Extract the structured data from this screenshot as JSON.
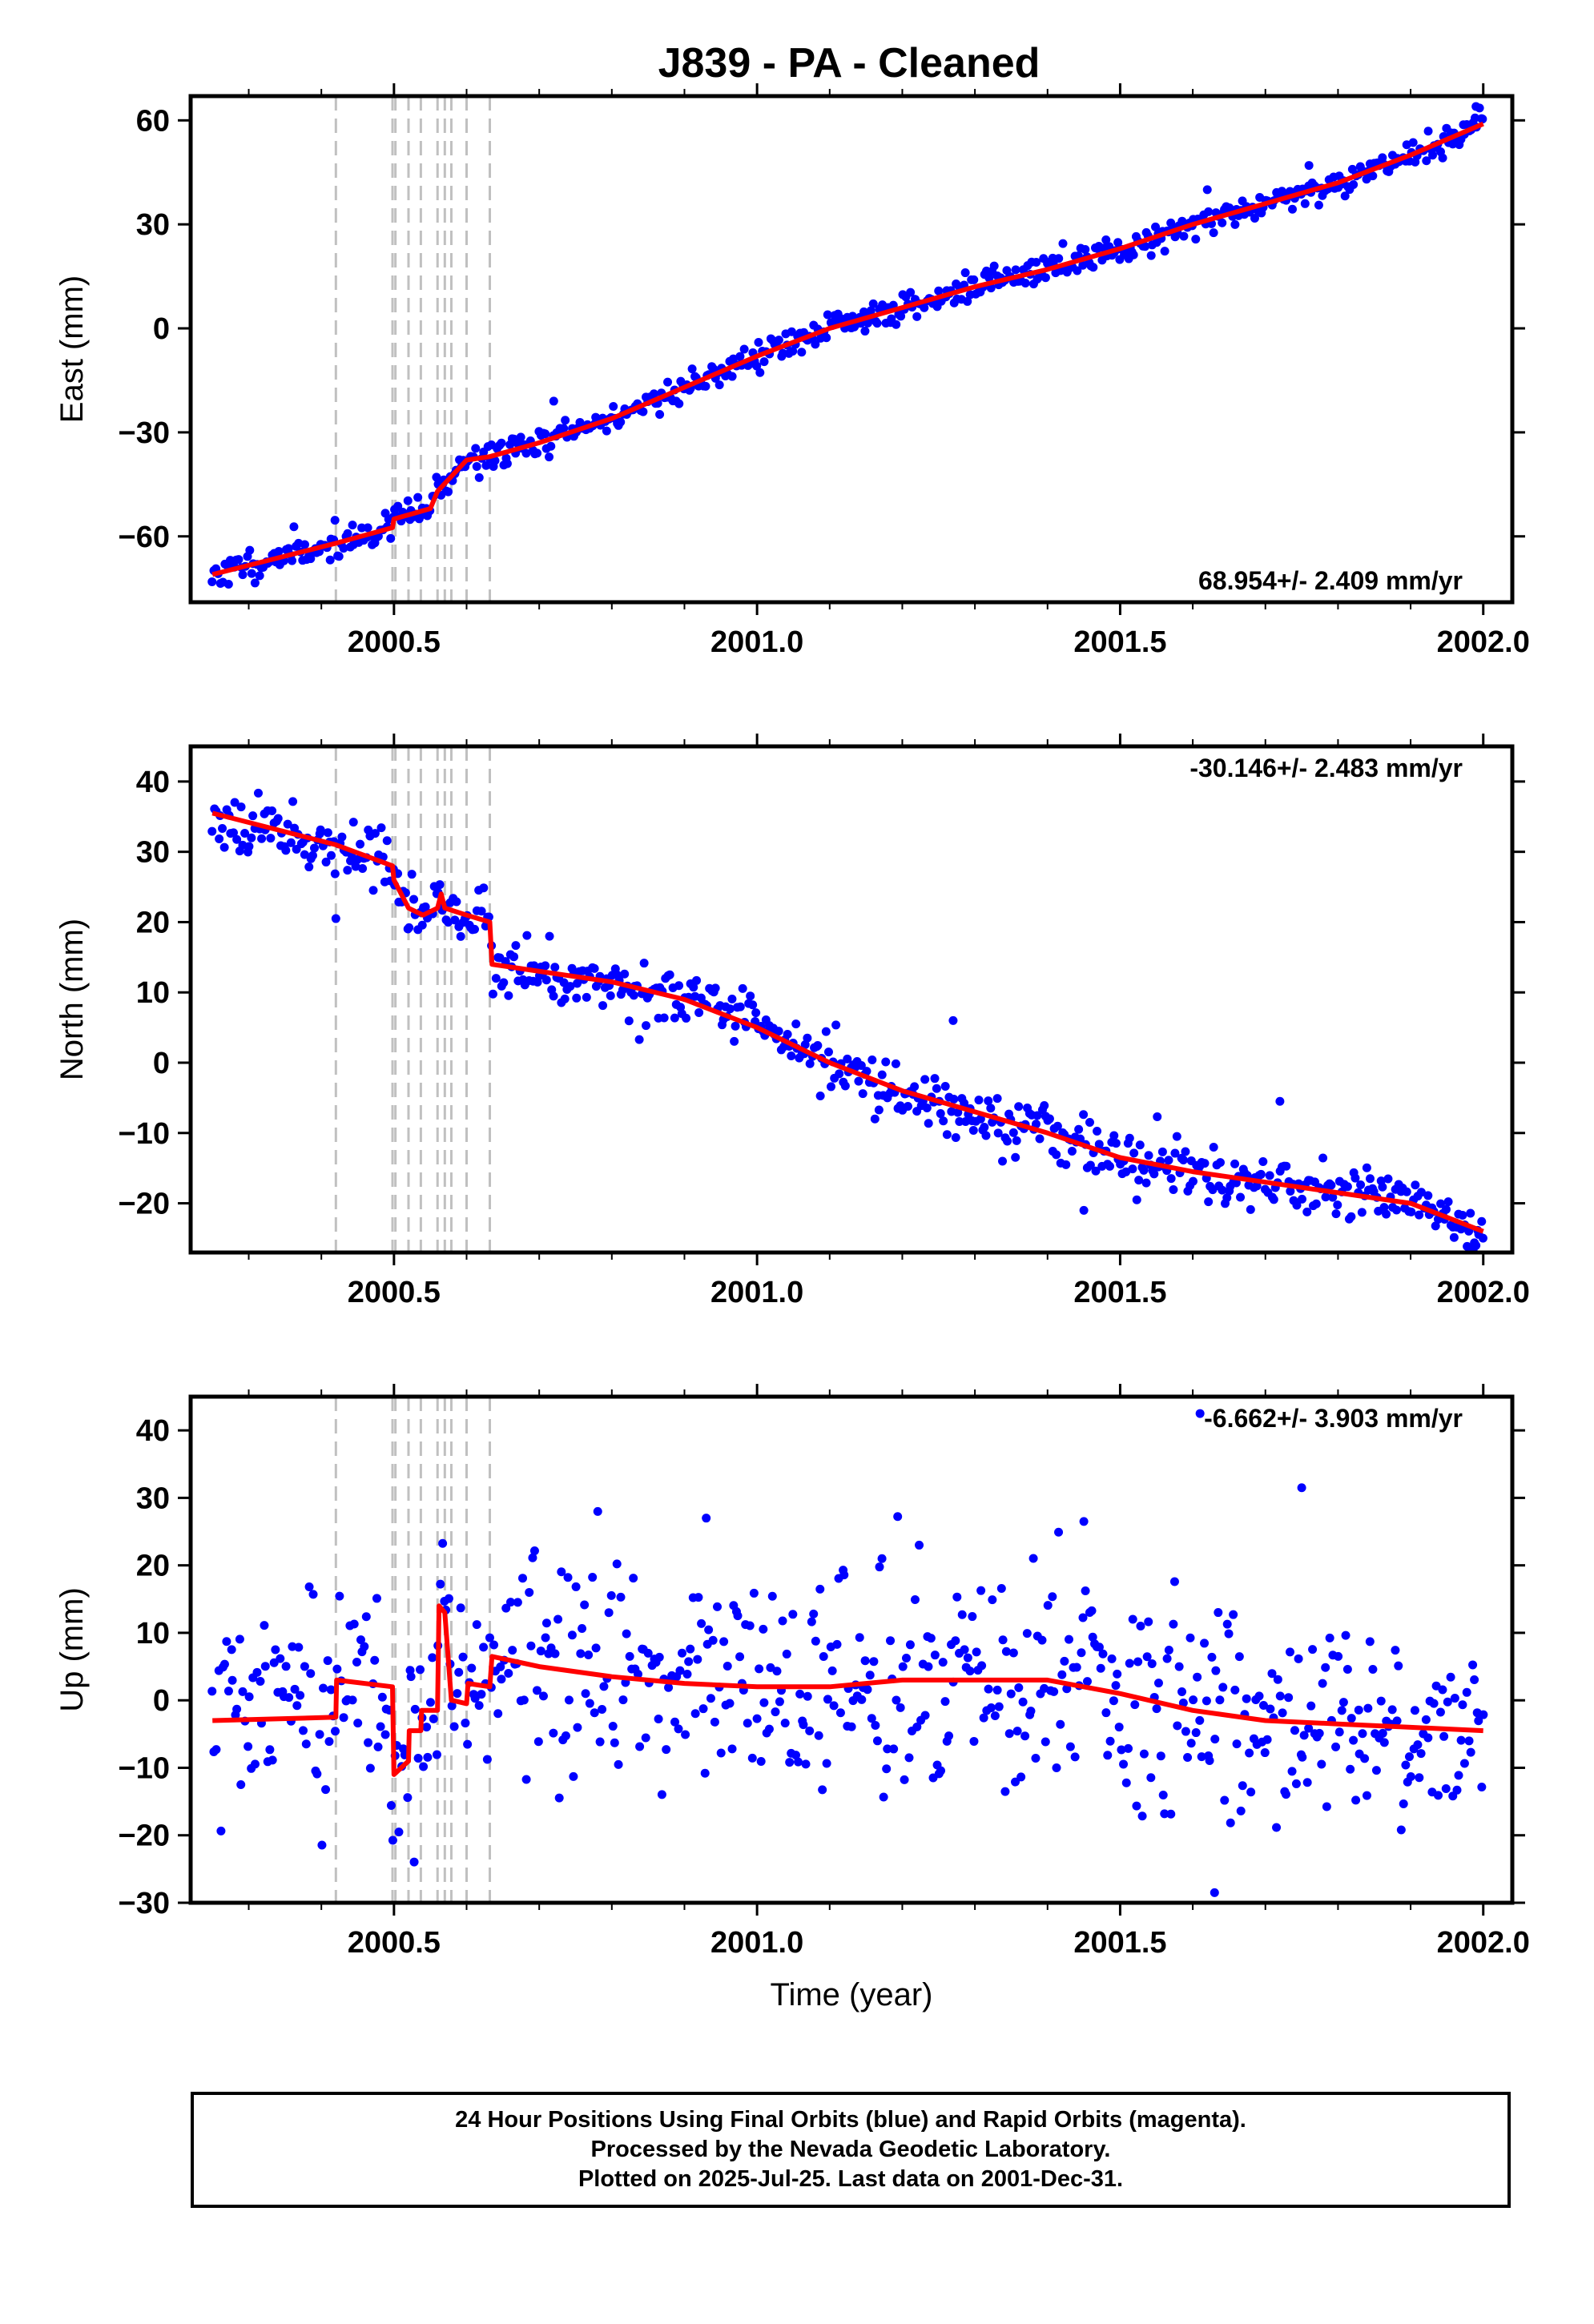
{
  "page": {
    "title": "J839  - PA - Cleaned"
  },
  "colors": {
    "points": "#0000ff",
    "model": "#ff0000",
    "breaks": "#c0c0c0",
    "frame": "#000000"
  },
  "chart_data": [
    {
      "type": "scatter",
      "ylabel": "East (mm)",
      "xlim": [
        2000.22,
        2002.04
      ],
      "ylim": [
        -79,
        67
      ],
      "xticks": [
        2000.5,
        2001.0,
        2001.5,
        2002.0
      ],
      "xtick_labels": [
        "2000.5",
        "2001.0",
        "2001.5",
        "2002.0"
      ],
      "yticks": [
        -60,
        -30,
        0,
        30,
        60
      ],
      "ytick_labels": [
        "−60",
        "−30",
        "0",
        "30",
        "60"
      ],
      "rate_label": "68.954+/- 2.409 mm/yr",
      "rate_position": "bottom-right",
      "breaks": [
        2000.42,
        2000.498,
        2000.502,
        2000.52,
        2000.537,
        2000.56,
        2000.57,
        2000.579,
        2000.6,
        2000.632
      ],
      "model": {
        "x": [
          2000.25,
          2000.42,
          2000.498,
          2000.5,
          2000.55,
          2000.56,
          2000.6,
          2000.632,
          2000.7,
          2000.8,
          2000.9,
          2001.0,
          2001.1,
          2001.2,
          2001.3,
          2001.4,
          2001.5,
          2001.6,
          2001.7,
          2001.8,
          2001.9,
          2002.0
        ],
        "y": [
          -71,
          -62,
          -57.5,
          -55,
          -52,
          -47,
          -38,
          -37,
          -33,
          -26,
          -17,
          -8,
          0,
          6,
          12,
          17,
          23,
          30,
          36,
          42,
          50,
          59
        ]
      },
      "outliers": [
        {
          "x": 2001.62,
          "y": 40
        },
        {
          "x": 2001.76,
          "y": 47
        },
        {
          "x": 2000.72,
          "y": -21
        },
        {
          "x": 2001.99,
          "y": 64
        }
      ],
      "noise_sd": 2.2,
      "x_start": 2000.25,
      "x_end": 2002.0,
      "n_points": 620,
      "seed": 11
    },
    {
      "type": "scatter",
      "ylabel": "North (mm)",
      "xlim": [
        2000.22,
        2002.04
      ],
      "ylim": [
        -27,
        45
      ],
      "xticks": [
        2000.5,
        2001.0,
        2001.5,
        2002.0
      ],
      "xtick_labels": [
        "2000.5",
        "2001.0",
        "2001.5",
        "2002.0"
      ],
      "yticks": [
        -20,
        -10,
        0,
        10,
        20,
        30,
        40
      ],
      "ytick_labels": [
        "−20",
        "−10",
        "0",
        "10",
        "20",
        "30",
        "40"
      ],
      "rate_label": "-30.146+/- 2.483 mm/yr",
      "rate_position": "top-right",
      "breaks": [
        2000.42,
        2000.498,
        2000.502,
        2000.52,
        2000.537,
        2000.56,
        2000.57,
        2000.579,
        2000.6,
        2000.632
      ],
      "model": {
        "x": [
          2000.25,
          2000.42,
          2000.498,
          2000.5,
          2000.52,
          2000.54,
          2000.56,
          2000.565,
          2000.57,
          2000.6,
          2000.632,
          2000.635,
          2000.7,
          2000.8,
          2000.9,
          2001.0,
          2001.1,
          2001.2,
          2001.3,
          2001.4,
          2001.5,
          2001.6,
          2001.7,
          2001.8,
          2001.9,
          2001.95,
          2002.0
        ],
        "y": [
          35.5,
          31,
          28,
          26,
          22,
          21,
          22,
          24,
          22,
          21,
          20,
          14,
          13,
          11.5,
          9,
          5,
          0,
          -4,
          -7,
          -10,
          -13.5,
          -15.5,
          -17,
          -18.5,
          -20,
          -22,
          -24
        ]
      },
      "outliers": [
        {
          "x": 2001.27,
          "y": 6
        },
        {
          "x": 2001.45,
          "y": -21
        },
        {
          "x": 2001.72,
          "y": -5.5
        },
        {
          "x": 2000.42,
          "y": 20.5
        },
        {
          "x": 2001.99,
          "y": -26
        }
      ],
      "noise_sd": 2.0,
      "x_start": 2000.25,
      "x_end": 2002.0,
      "n_points": 620,
      "seed": 23
    },
    {
      "type": "scatter",
      "ylabel": "Up (mm)",
      "xlabel": "Time (year)",
      "xlim": [
        2000.22,
        2002.04
      ],
      "ylim": [
        -30,
        45
      ],
      "xticks": [
        2000.5,
        2001.0,
        2001.5,
        2002.0
      ],
      "xtick_labels": [
        "2000.5",
        "2001.0",
        "2001.5",
        "2002.0"
      ],
      "yticks": [
        -30,
        -20,
        -10,
        0,
        10,
        20,
        30,
        40
      ],
      "ytick_labels": [
        "−30",
        "−20",
        "−10",
        "0",
        "10",
        "20",
        "30",
        "40"
      ],
      "rate_label": "-6.662+/- 3.903 mm/yr",
      "rate_position": "top-right",
      "breaks": [
        2000.42,
        2000.498,
        2000.502,
        2000.52,
        2000.537,
        2000.56,
        2000.57,
        2000.579,
        2000.6,
        2000.632
      ],
      "model": {
        "x": [
          2000.25,
          2000.42,
          2000.421,
          2000.498,
          2000.5,
          2000.52,
          2000.521,
          2000.537,
          2000.538,
          2000.56,
          2000.562,
          2000.57,
          2000.579,
          2000.58,
          2000.6,
          2000.602,
          2000.632,
          2000.635,
          2000.7,
          2000.8,
          2000.9,
          2001.0,
          2001.1,
          2001.2,
          2001.3,
          2001.4,
          2001.5,
          2001.6,
          2001.7,
          2001.8,
          2001.9,
          2002.0
        ],
        "y": [
          -3,
          -2.5,
          3,
          2,
          -11,
          -9,
          -4.5,
          -4.5,
          -1.5,
          -1.5,
          14,
          13,
          0,
          0,
          -0.5,
          2.5,
          2,
          6.5,
          5,
          3.5,
          2.5,
          2,
          2,
          3,
          3,
          3,
          1,
          -1.5,
          -3,
          -3.5,
          -4,
          -4.5
        ]
      },
      "outliers": [
        {
          "x": 2001.75,
          "y": 31.5
        },
        {
          "x": 2001.63,
          "y": -28.5
        },
        {
          "x": 2001.61,
          "y": 42.5
        },
        {
          "x": 2000.93,
          "y": 27
        },
        {
          "x": 2001.45,
          "y": 26.5
        }
      ],
      "noise_sd": 8.0,
      "x_start": 2000.25,
      "x_end": 2002.0,
      "n_points": 620,
      "seed": 37
    }
  ],
  "footer": {
    "line1": "24 Hour Positions Using Final Orbits (blue) and Rapid Orbits (magenta).",
    "line2": "Processed by the Nevada Geodetic Laboratory.",
    "line3": "Plotted on 2025-Jul-25. Last data on 2001-Dec-31."
  }
}
